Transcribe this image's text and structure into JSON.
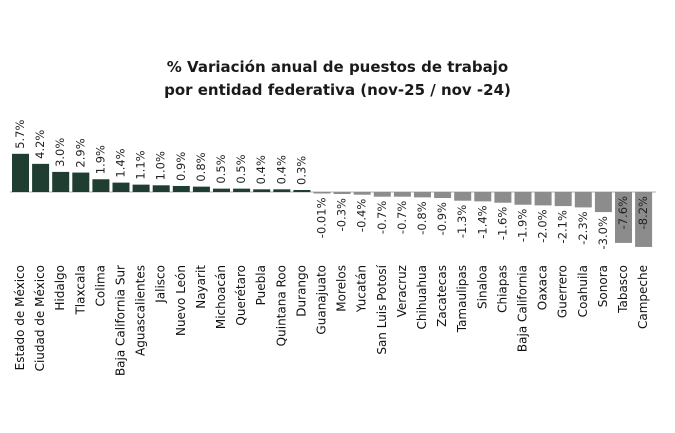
{
  "chart_data": {
    "type": "bar",
    "title": "% Variación anual de puestos de trabajo",
    "subtitle": "por entidad federativa (nov-25 / nov -24)",
    "xlabel": "",
    "ylabel": "",
    "ylim": [
      -8.2,
      5.7
    ],
    "grid": false,
    "legend": "none",
    "colors": {
      "positive": "#1f3d30",
      "negative": "#8c8c8c",
      "axis": "#bfbfbf"
    },
    "categories": [
      "Estado de México",
      "Ciudad de México",
      "Hidalgo",
      "Tlaxcala",
      "Colima",
      "Baja California Sur",
      "Aguascalientes",
      "Jalisco",
      "Nuevo León",
      "Nayarit",
      "Michoacán",
      "Querétaro",
      "Puebla",
      "Quintana Roo",
      "Durango",
      "Guanajuato",
      "Morelos",
      "Yucatán",
      "San Luis Potosí",
      "Veracruz",
      "Chihuahua",
      "Zacatecas",
      "Tamaulipas",
      "Sinaloa",
      "Chiapas",
      "Baja California",
      "Oaxaca",
      "Guerrero",
      "Coahuila",
      "Sonora",
      "Tabasco",
      "Campeche"
    ],
    "values": [
      5.7,
      4.2,
      3.0,
      2.9,
      1.9,
      1.4,
      1.1,
      1.0,
      0.9,
      0.8,
      0.5,
      0.5,
      0.4,
      0.4,
      0.3,
      -0.01,
      -0.3,
      -0.4,
      -0.7,
      -0.7,
      -0.8,
      -0.9,
      -1.3,
      -1.4,
      -1.6,
      -1.9,
      -2.0,
      -2.1,
      -2.3,
      -3.0,
      -7.6,
      -8.2
    ],
    "labels": [
      "5.7%",
      "4.2%",
      "3.0%",
      "2.9%",
      "1.9%",
      "1.4%",
      "1.1%",
      "1.0%",
      "0.9%",
      "0.8%",
      "0.5%",
      "0.5%",
      "0.4%",
      "0.4%",
      "0.3%",
      "-0.01%",
      "-0.3%",
      "-0.4%",
      "-0.7%",
      "-0.7%",
      "-0.8%",
      "-0.9%",
      "-1.3%",
      "-1.4%",
      "-1.6%",
      "-1.9%",
      "-2.0%",
      "-2.1%",
      "-2.3%",
      "-3.0%",
      "-7.6%",
      "-8.2%"
    ]
  }
}
